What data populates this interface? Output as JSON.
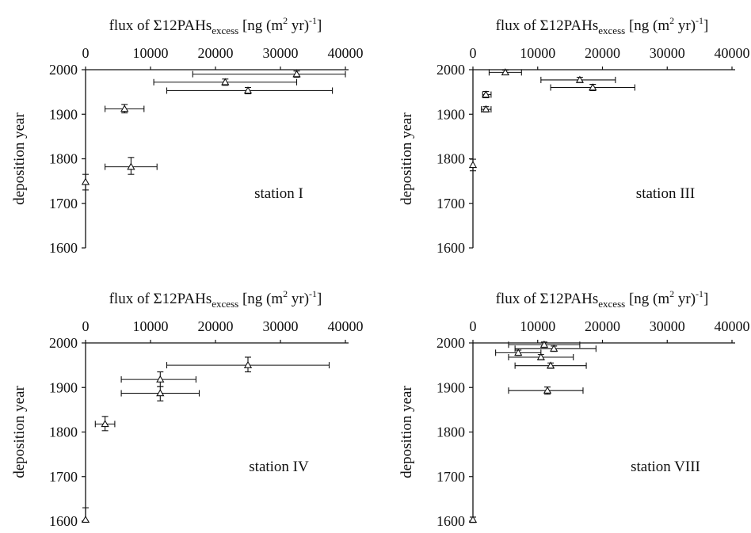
{
  "chart_data": [
    {
      "type": "scatter",
      "title": {
        "pre": "flux of Σ12PAHs",
        "sub": "excess",
        "mid1": " [ng (m",
        "sup1": "2",
        "mid2": " yr)",
        "sup2": "-1",
        "post": "]"
      },
      "ylabel": "deposition year",
      "annotation": "station I",
      "xlim": [
        0,
        40000
      ],
      "ylim": [
        1600,
        2000
      ],
      "x_ticks": [
        0,
        10000,
        20000,
        30000,
        40000
      ],
      "y_ticks": [
        1600,
        1700,
        1800,
        1900,
        2000
      ],
      "marker": "triangle-open",
      "points": [
        {
          "x": 32500,
          "xerr": [
            16500,
            40000
          ],
          "y": 1990,
          "yerr": [
            1983,
            1997
          ]
        },
        {
          "x": 21500,
          "xerr": [
            10500,
            32500
          ],
          "y": 1972,
          "yerr": [
            1965,
            1979
          ]
        },
        {
          "x": 25000,
          "xerr": [
            12500,
            38000
          ],
          "y": 1953,
          "yerr": [
            1946,
            1960
          ]
        },
        {
          "x": 6000,
          "xerr": [
            3000,
            9000
          ],
          "y": 1912,
          "yerr": [
            1903,
            1922
          ]
        },
        {
          "x": 7000,
          "xerr": [
            3000,
            11000
          ],
          "y": 1782,
          "yerr": [
            1765,
            1803
          ]
        },
        {
          "x": 0,
          "xerr": [
            0,
            0
          ],
          "y": 1748,
          "yerr": [
            1730,
            1765
          ]
        }
      ]
    },
    {
      "type": "scatter",
      "title": {
        "pre": "flux of Σ12PAHs",
        "sub": "excess",
        "mid1": " [ng (m",
        "sup1": "2",
        "mid2": " yr)",
        "sup2": "-1",
        "post": "]"
      },
      "ylabel": "deposition year",
      "annotation": "station III",
      "xlim": [
        0,
        40000
      ],
      "ylim": [
        1600,
        2000
      ],
      "x_ticks": [
        0,
        10000,
        20000,
        30000,
        40000
      ],
      "y_ticks": [
        1600,
        1700,
        1800,
        1900,
        2000
      ],
      "marker": "triangle-open",
      "points": [
        {
          "x": 5000,
          "xerr": [
            2500,
            7500
          ],
          "y": 1994,
          "yerr": [
            1989,
            1999
          ]
        },
        {
          "x": 16500,
          "xerr": [
            10500,
            22000
          ],
          "y": 1977,
          "yerr": [
            1971,
            1983
          ]
        },
        {
          "x": 18500,
          "xerr": [
            12000,
            25000
          ],
          "y": 1960,
          "yerr": [
            1953,
            1967
          ]
        },
        {
          "x": 2000,
          "xerr": [
            1500,
            2800
          ],
          "y": 1944,
          "yerr": [
            1937,
            1951
          ]
        },
        {
          "x": 2000,
          "xerr": [
            1300,
            2800
          ],
          "y": 1911,
          "yerr": [
            1905,
            1917
          ]
        },
        {
          "x": 0,
          "xerr": [
            0,
            0
          ],
          "y": 1786,
          "yerr": [
            1773,
            1799
          ]
        }
      ]
    },
    {
      "type": "scatter",
      "title": {
        "pre": "flux of Σ12PAHs",
        "sub": "excess",
        "mid1": " [ng (m",
        "sup1": "2",
        "mid2": " yr)",
        "sup2": "-1",
        "post": "]"
      },
      "ylabel": "deposition year",
      "annotation": "station IV",
      "xlim": [
        0,
        40000
      ],
      "ylim": [
        1600,
        2000
      ],
      "x_ticks": [
        0,
        10000,
        20000,
        30000,
        40000
      ],
      "y_ticks": [
        1600,
        1700,
        1800,
        1900,
        2000
      ],
      "marker": "triangle-open",
      "points": [
        {
          "x": 25000,
          "xerr": [
            12500,
            37500
          ],
          "y": 1950,
          "yerr": [
            1935,
            1968
          ]
        },
        {
          "x": 11500,
          "xerr": [
            5500,
            17000
          ],
          "y": 1918,
          "yerr": [
            1902,
            1935
          ]
        },
        {
          "x": 11500,
          "xerr": [
            5500,
            17500
          ],
          "y": 1887,
          "yerr": [
            1870,
            1902
          ]
        },
        {
          "x": 3000,
          "xerr": [
            1500,
            4500
          ],
          "y": 1818,
          "yerr": [
            1803,
            1835
          ]
        },
        {
          "x": 0,
          "xerr": [
            0,
            0
          ],
          "y": 1603,
          "yerr": [
            1600,
            1630
          ]
        }
      ]
    },
    {
      "type": "scatter",
      "title": {
        "pre": "flux of Σ12PAHs",
        "sub": "excess",
        "mid1": " [ng (m",
        "sup1": "2",
        "mid2": " yr)",
        "sup2": "-1",
        "post": "]"
      },
      "ylabel": "deposition year",
      "annotation": "station VIII",
      "xlim": [
        0,
        40000
      ],
      "ylim": [
        1600,
        2000
      ],
      "x_ticks": [
        0,
        10000,
        20000,
        30000,
        40000
      ],
      "y_ticks": [
        1600,
        1700,
        1800,
        1900,
        2000
      ],
      "marker": "triangle-open",
      "points": [
        {
          "x": 11000,
          "xerr": [
            5500,
            16500
          ],
          "y": 1996,
          "yerr": [
            1990,
            2002
          ]
        },
        {
          "x": 12500,
          "xerr": [
            6500,
            19000
          ],
          "y": 1987,
          "yerr": [
            1981,
            1993
          ]
        },
        {
          "x": 7000,
          "xerr": [
            3500,
            10500
          ],
          "y": 1978,
          "yerr": [
            1972,
            1984
          ]
        },
        {
          "x": 10500,
          "xerr": [
            5500,
            15500
          ],
          "y": 1968,
          "yerr": [
            1962,
            1974
          ]
        },
        {
          "x": 12000,
          "xerr": [
            6500,
            17500
          ],
          "y": 1949,
          "yerr": [
            1943,
            1955
          ]
        },
        {
          "x": 11500,
          "xerr": [
            5500,
            17000
          ],
          "y": 1893,
          "yerr": [
            1885,
            1901
          ]
        },
        {
          "x": 0,
          "xerr": [
            0,
            0
          ],
          "y": 1603,
          "yerr": [
            1597,
            1609
          ]
        }
      ]
    }
  ]
}
